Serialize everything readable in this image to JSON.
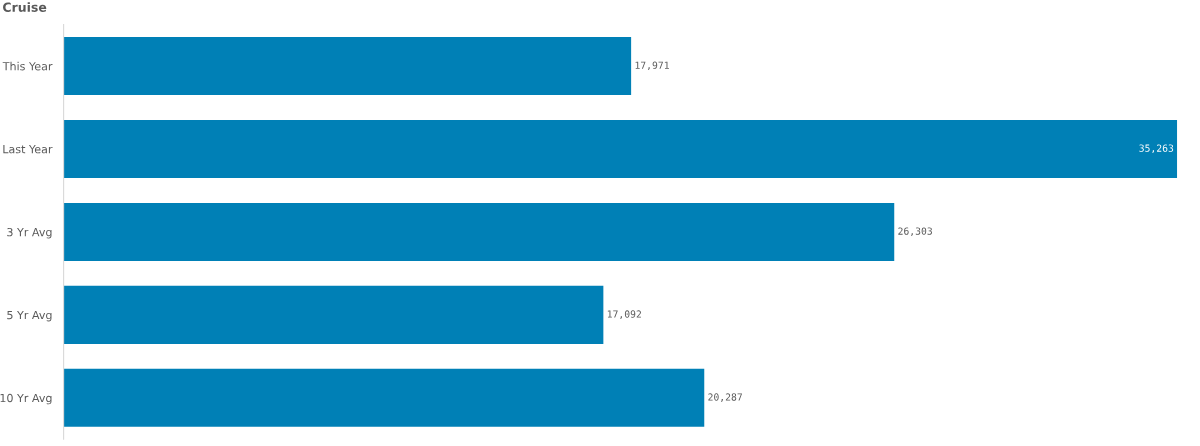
{
  "chart_data": {
    "type": "bar",
    "title": "Cruise",
    "orientation": "horizontal",
    "categories": [
      "This Year",
      "Last Year",
      "3 Yr Avg",
      "5 Yr Avg",
      "10 Yr Avg"
    ],
    "values": [
      17971,
      35263,
      26303,
      17092,
      20287
    ],
    "value_labels": [
      "17,971",
      "35,263",
      "26,303",
      "17,092",
      "20,287"
    ],
    "color": "#0080b6",
    "tick_labels": "y",
    "grid": false,
    "legend": false
  }
}
